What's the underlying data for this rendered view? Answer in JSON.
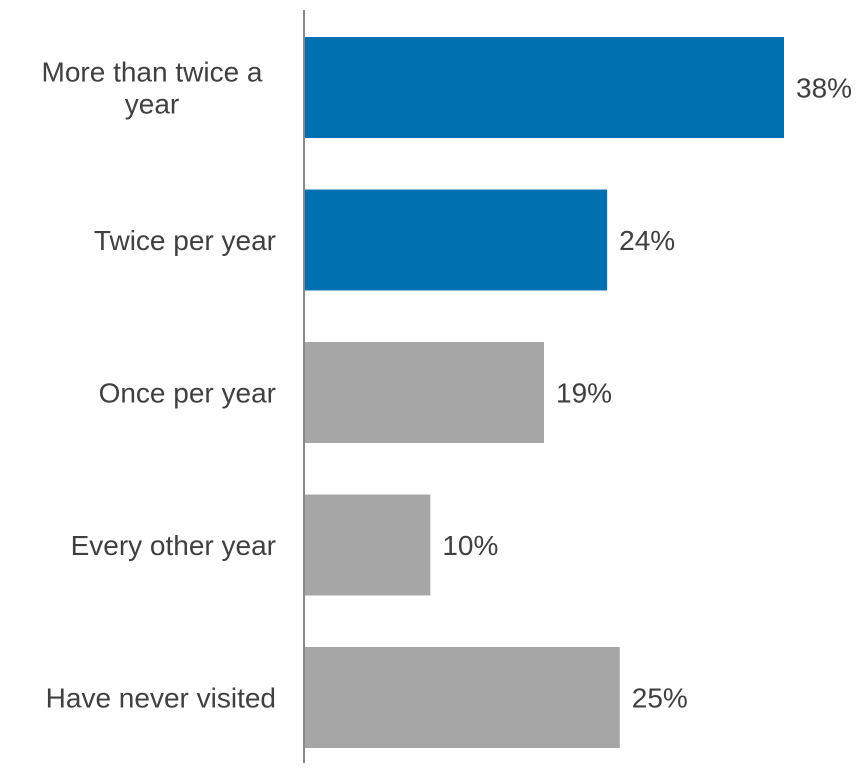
{
  "chart_data": {
    "type": "bar",
    "orientation": "horizontal",
    "categories": [
      [
        "More than twice a",
        "year"
      ],
      [
        "Twice per year"
      ],
      [
        "Once per year"
      ],
      [
        "Every other year"
      ],
      [
        "Have never visited"
      ]
    ],
    "values": [
      38,
      24,
      19,
      10,
      25
    ],
    "value_labels": [
      "38%",
      "24%",
      "19%",
      "10%",
      "25%"
    ],
    "bar_colors": [
      "#0070b0",
      "#0070b0",
      "#a6a6a6",
      "#a6a6a6",
      "#a6a6a6"
    ],
    "axis_color": "#888888",
    "text_color": "#404040",
    "xlim": [
      0,
      100
    ],
    "title": "",
    "xlabel": "",
    "ylabel": "",
    "grid": false,
    "legend": "none"
  }
}
